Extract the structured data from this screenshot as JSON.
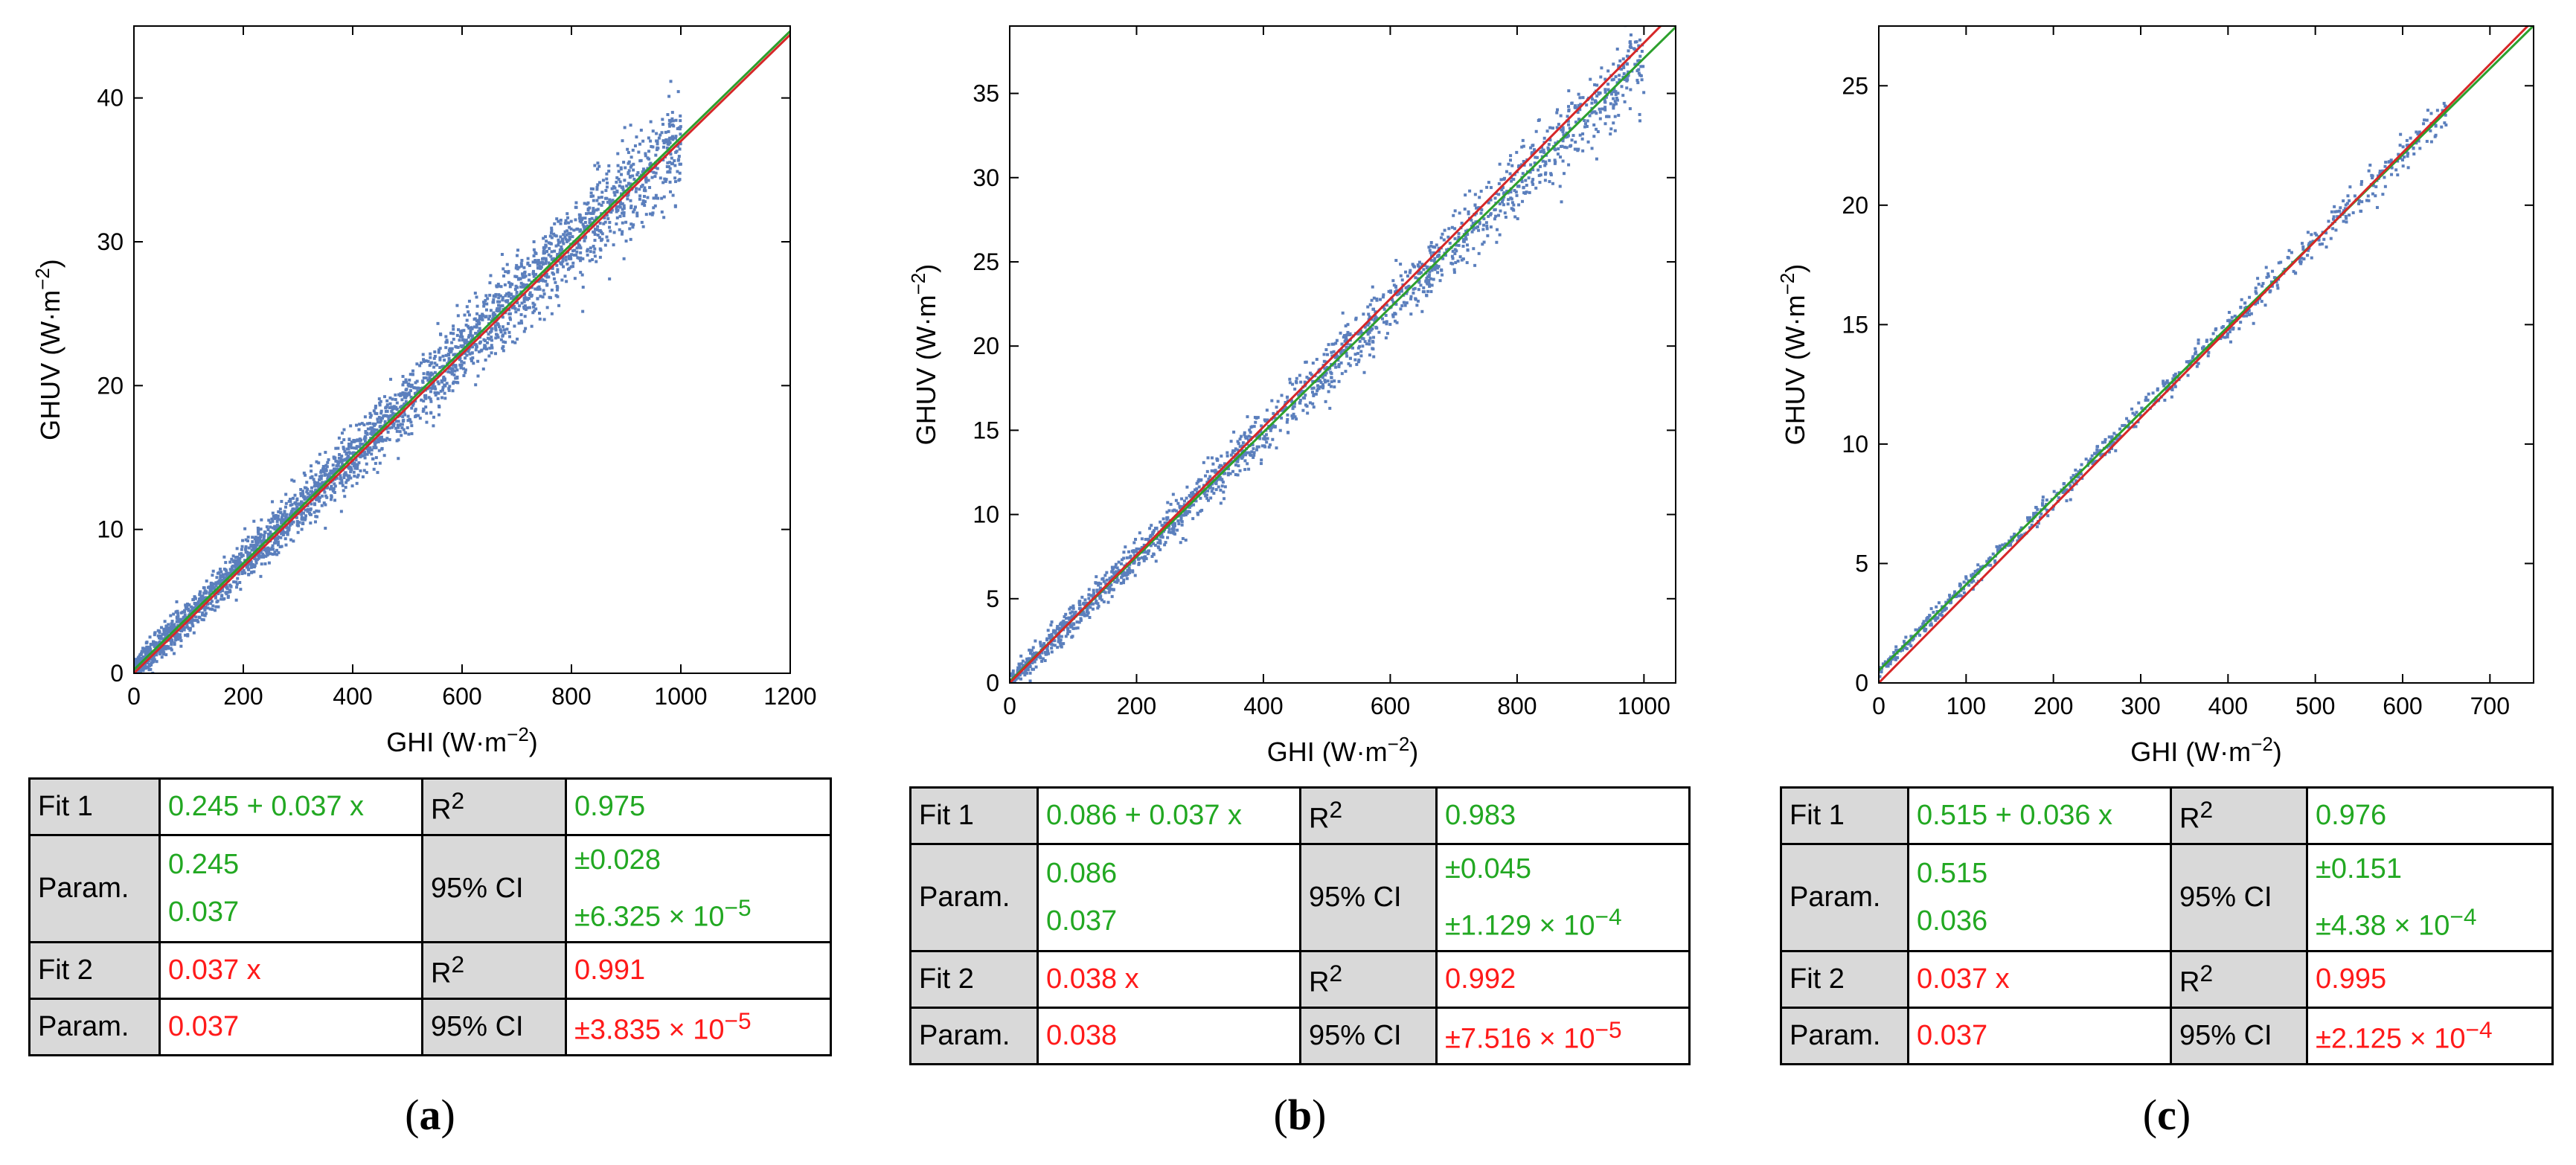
{
  "chart_data": [
    {
      "type": "scatter",
      "panel": "a",
      "caption_letter": "a",
      "xlabel": "GHI (W·m−2)",
      "ylabel": "GHUV (W·m−2)",
      "xlim": [
        0,
        1200
      ],
      "ylim": [
        0,
        45
      ],
      "xticks": [
        0,
        200,
        400,
        600,
        800,
        1000,
        1200
      ],
      "yticks": [
        0,
        10,
        20,
        30,
        40
      ],
      "scatter": {
        "n": 3000,
        "x_max": 1000,
        "intercept": 0.245,
        "slope": 0.037,
        "noise_sd": 1.8,
        "color": "#5b7fbd"
      },
      "fits": [
        {
          "name": "Fit 1",
          "intercept": 0.245,
          "slope": 0.037,
          "color": "#2ca02c"
        },
        {
          "name": "Fit 2",
          "intercept": 0,
          "slope": 0.037,
          "color": "#d62728"
        }
      ],
      "table": {
        "fit1_label": "Fit 1",
        "fit1_expr": "0.245 + 0.037 x",
        "r2_label": "R",
        "r2_sup": "2",
        "fit1_r2": "0.975",
        "param_label": "Param.",
        "fit1_param_a": "0.245",
        "fit1_param_b": "0.037",
        "ci_label": "95% CI",
        "fit1_ci_a": "±0.028",
        "fit1_ci_b": "±6.325 × 10",
        "fit1_ci_b_exp": "−5",
        "fit2_label": "Fit 2",
        "fit2_expr": "0.037 x",
        "fit2_r2": "0.991",
        "fit2_param": "0.037",
        "fit2_ci": "±3.835 × 10",
        "fit2_ci_exp": "−5"
      }
    },
    {
      "type": "scatter",
      "panel": "b",
      "caption_letter": "b",
      "xlabel": "GHI (W·m−2)",
      "ylabel": "GHUV (W·m−2)",
      "xlim": [
        0,
        1050
      ],
      "ylim": [
        0,
        39
      ],
      "xticks": [
        0,
        200,
        400,
        600,
        800,
        1000
      ],
      "yticks": [
        0,
        5,
        10,
        15,
        20,
        25,
        30,
        35
      ],
      "scatter": {
        "n": 1800,
        "x_max": 1000,
        "intercept": 0.086,
        "slope": 0.037,
        "noise_sd": 1.3,
        "color": "#5b7fbd"
      },
      "fits": [
        {
          "name": "Fit 1",
          "intercept": 0.086,
          "slope": 0.037,
          "color": "#2ca02c"
        },
        {
          "name": "Fit 2",
          "intercept": 0,
          "slope": 0.038,
          "color": "#d62728"
        }
      ],
      "table": {
        "fit1_label": "Fit 1",
        "fit1_expr": "0.086 + 0.037 x",
        "r2_label": "R",
        "r2_sup": "2",
        "fit1_r2": "0.983",
        "param_label": "Param.",
        "fit1_param_a": "0.086",
        "fit1_param_b": "0.037",
        "ci_label": "95% CI",
        "fit1_ci_a": "±0.045",
        "fit1_ci_b": "±1.129 × 10",
        "fit1_ci_b_exp": "−4",
        "fit2_label": "Fit 2",
        "fit2_expr": "0.038 x",
        "fit2_r2": "0.992",
        "fit2_param": "0.038",
        "fit2_ci": "±7.516 × 10",
        "fit2_ci_exp": "−5"
      }
    },
    {
      "type": "scatter",
      "panel": "c",
      "caption_letter": "c",
      "xlabel": "GHI (W·m−2)",
      "ylabel": "GHUV (W·m−2)",
      "xlim": [
        0,
        750
      ],
      "ylim": [
        0,
        27.5
      ],
      "xticks": [
        0,
        100,
        200,
        300,
        400,
        500,
        600,
        700
      ],
      "yticks": [
        0,
        5,
        10,
        15,
        20,
        25
      ],
      "scatter": {
        "n": 700,
        "x_max": 650,
        "intercept": 0.515,
        "slope": 0.036,
        "noise_sd": 0.45,
        "color": "#5b7fbd"
      },
      "fits": [
        {
          "name": "Fit 1",
          "intercept": 0.515,
          "slope": 0.036,
          "color": "#2ca02c"
        },
        {
          "name": "Fit 2",
          "intercept": 0,
          "slope": 0.037,
          "color": "#d62728"
        }
      ],
      "table": {
        "fit1_label": "Fit 1",
        "fit1_expr": "0.515 + 0.036 x",
        "r2_label": "R",
        "r2_sup": "2",
        "fit1_r2": "0.976",
        "param_label": "Param.",
        "fit1_param_a": "0.515",
        "fit1_param_b": "0.036",
        "ci_label": "95% CI",
        "fit1_ci_a": "±0.151",
        "fit1_ci_b": "±4.38 × 10",
        "fit1_ci_b_exp": "−4",
        "fit2_label": "Fit 2",
        "fit2_expr": "0.037 x",
        "fit2_r2": "0.995",
        "fit2_param": "0.037",
        "fit2_ci": "±2.125 × 10",
        "fit2_ci_exp": "−4"
      }
    }
  ]
}
